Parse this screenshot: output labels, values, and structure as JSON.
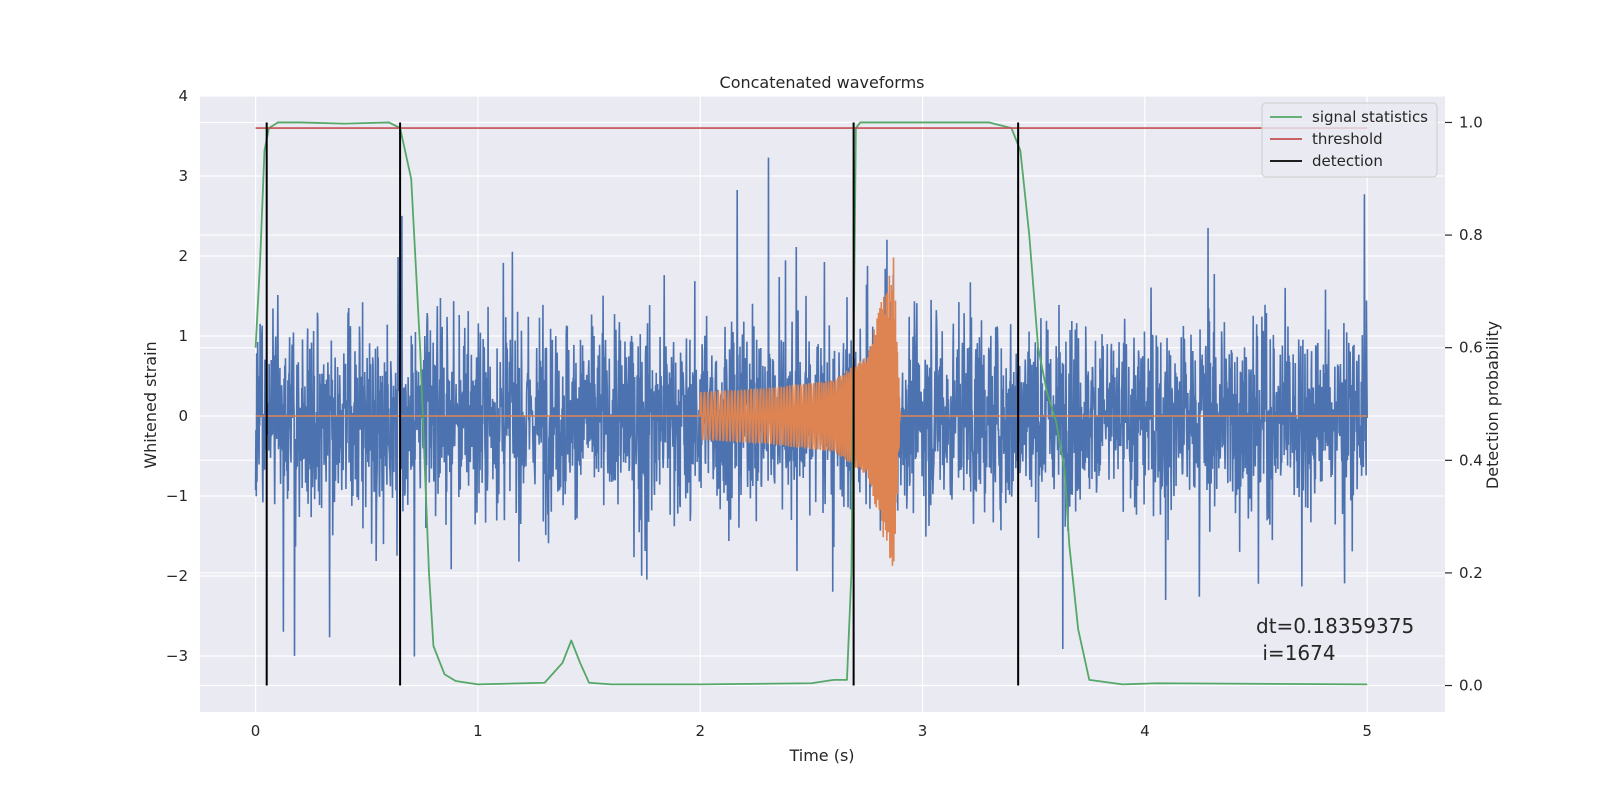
{
  "chart_data": {
    "type": "line",
    "title": "Concatenated waveforms",
    "xlabel": "Time (s)",
    "ylabel": "Whitened strain",
    "y2label": "Detection probability",
    "xlim": [
      -0.25,
      5.35
    ],
    "ylim": [
      -3.7,
      4.0
    ],
    "y2lim": [
      -0.047,
      1.047
    ],
    "x_ticks": [
      0,
      1,
      2,
      3,
      4,
      5
    ],
    "y_ticks": [
      -3,
      -2,
      -1,
      0,
      1,
      2,
      3,
      4
    ],
    "y_tick_labels": [
      "−3",
      "−2",
      "−1",
      "0",
      "1",
      "2",
      "3",
      "4"
    ],
    "y2_ticks": [
      0.0,
      0.2,
      0.4,
      0.6,
      0.8,
      1.0
    ],
    "y2_tick_labels": [
      "0.0",
      "0.2",
      "0.4",
      "0.6",
      "0.8",
      "1.0"
    ],
    "grid": true,
    "legend_position": "top-right",
    "series": [
      {
        "id": "strain",
        "axis": "left",
        "color": "#4c72b0",
        "kind": "noise",
        "x_range": [
          0,
          5
        ],
        "typical_amplitude": 1.1,
        "min": -3.37,
        "max": 3.65
      },
      {
        "id": "injected",
        "axis": "left",
        "color": "#dd8452",
        "kind": "chirp",
        "x": [
          0,
          2.0,
          2.3,
          2.6,
          2.75,
          2.85,
          2.87,
          2.9,
          5
        ],
        "envelope": [
          0,
          0.3,
          0.35,
          0.45,
          0.75,
          1.8,
          2.0,
          0.05,
          0
        ]
      },
      {
        "name": "signal statistics",
        "axis": "right",
        "color": "#55a868",
        "x": [
          0.0,
          0.02,
          0.04,
          0.06,
          0.1,
          0.2,
          0.4,
          0.6,
          0.65,
          0.7,
          0.74,
          0.78,
          0.8,
          0.85,
          0.9,
          1.0,
          1.3,
          1.38,
          1.42,
          1.46,
          1.5,
          1.6,
          2.0,
          2.5,
          2.6,
          2.66,
          2.68,
          2.7,
          2.72,
          3.0,
          3.3,
          3.4,
          3.44,
          3.48,
          3.52,
          3.56,
          3.6,
          3.64,
          3.66,
          3.7,
          3.75,
          3.9,
          4.05,
          5.0
        ],
        "y": [
          0.6,
          0.75,
          0.95,
          0.99,
          1.0,
          1.0,
          0.998,
          1.0,
          0.99,
          0.9,
          0.6,
          0.2,
          0.07,
          0.02,
          0.008,
          0.002,
          0.005,
          0.04,
          0.08,
          0.04,
          0.005,
          0.002,
          0.002,
          0.004,
          0.01,
          0.01,
          0.2,
          0.99,
          1.0,
          1.0,
          1.0,
          0.99,
          0.95,
          0.8,
          0.6,
          0.52,
          0.47,
          0.38,
          0.25,
          0.1,
          0.01,
          0.002,
          0.004,
          0.002
        ]
      },
      {
        "name": "threshold",
        "axis": "right",
        "color": "#c44e52",
        "x": [
          0,
          5
        ],
        "y": [
          0.99,
          0.99
        ]
      },
      {
        "name": "detection",
        "axis": "right",
        "color": "#000000",
        "kind": "vlines",
        "x": [
          0.05,
          0.65,
          2.69,
          3.43
        ],
        "y_range": [
          0.0,
          1.0
        ]
      }
    ],
    "annotation": {
      "line1": "dt=0.18359375",
      "line2": " i=1674",
      "x": 4.5,
      "y": 0.1
    }
  },
  "colors": {
    "plot_bg": "#eaeaf2",
    "grid": "#ffffff"
  }
}
